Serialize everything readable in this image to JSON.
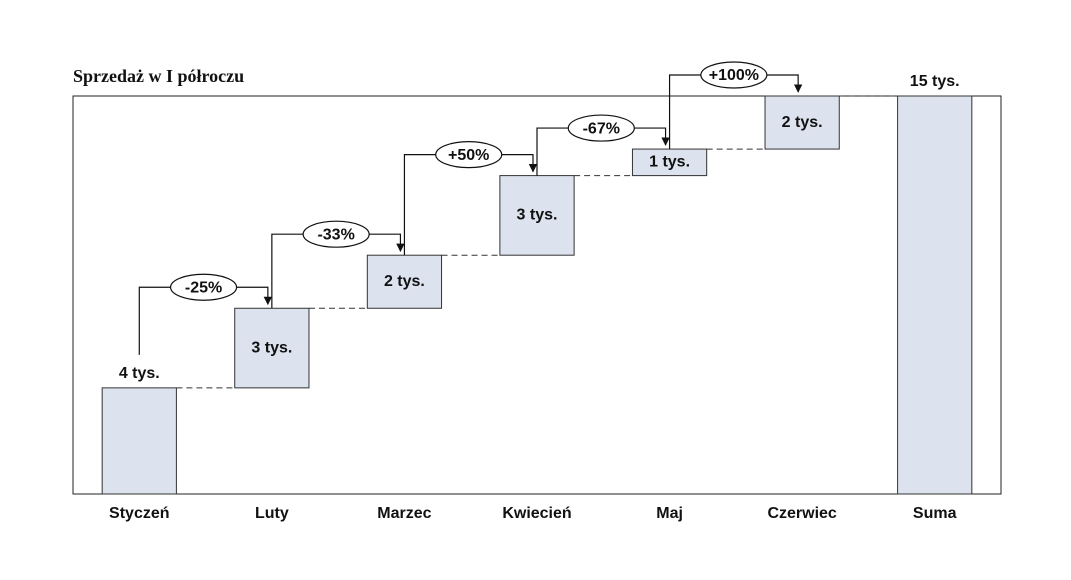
{
  "chart_data": {
    "type": "waterfall",
    "title": "Sprzedaż w I półroczu",
    "categories": [
      "Styczeń",
      "Luty",
      "Marzec",
      "Kwiecień",
      "Maj",
      "Czerwiec",
      "Suma"
    ],
    "values": [
      4,
      3,
      2,
      3,
      1,
      2,
      15
    ],
    "value_labels": [
      "4 tys.",
      "3 tys.",
      "2 tys.",
      "3 tys.",
      "1 tys.",
      "2 tys.",
      "15 tys."
    ],
    "changes": [
      -25,
      -33,
      50,
      -67,
      100
    ],
    "change_labels": [
      "-25%",
      "-33%",
      "+50%",
      "-67%",
      "+100%"
    ],
    "color": "#dce3ee",
    "ylim": [
      0,
      15
    ]
  }
}
